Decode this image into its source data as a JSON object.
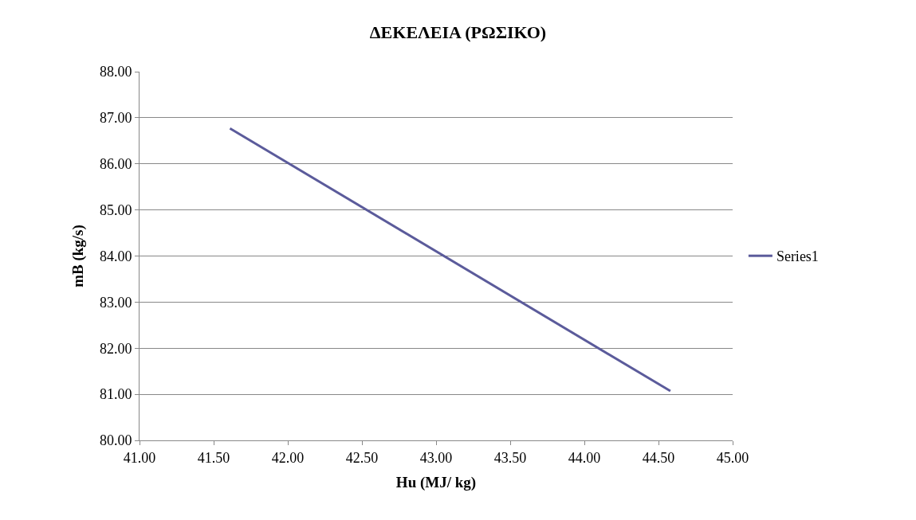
{
  "chart_data": {
    "type": "line",
    "title": "ΔΕΚΕΛΕΙΑ (ΡΩΣΙΚΟ)",
    "xlabel": "Hu (MJ/ kg)",
    "ylabel": "mB (kg/s)",
    "x": [
      41.61,
      44.58
    ],
    "series": [
      {
        "name": "Series1",
        "color": "#5b5b9b",
        "values": [
          86.77,
          81.07
        ]
      }
    ],
    "xlim": [
      41,
      45
    ],
    "xticks": [
      {
        "value": 41,
        "label": "41.00"
      },
      {
        "value": 41.5,
        "label": "41.50"
      },
      {
        "value": 42,
        "label": "42.00"
      },
      {
        "value": 42.5,
        "label": "42.50"
      },
      {
        "value": 43,
        "label": "43.00"
      },
      {
        "value": 43.5,
        "label": "43.50"
      },
      {
        "value": 44,
        "label": "44.00"
      },
      {
        "value": 44.5,
        "label": "44.50"
      },
      {
        "value": 45,
        "label": "45.00"
      }
    ],
    "ylim": [
      80,
      88
    ],
    "yticks": [
      {
        "value": 80,
        "label": "80.00"
      },
      {
        "value": 81,
        "label": "81.00"
      },
      {
        "value": 82,
        "label": "82.00"
      },
      {
        "value": 83,
        "label": "83.00"
      },
      {
        "value": 84,
        "label": "84.00"
      },
      {
        "value": 85,
        "label": "85.00"
      },
      {
        "value": 86,
        "label": "86.00"
      },
      {
        "value": 87,
        "label": "87.00"
      },
      {
        "value": 88,
        "label": "88.00"
      }
    ],
    "grid": "y",
    "legend": "right",
    "marker": "none",
    "line_style": "solid"
  }
}
